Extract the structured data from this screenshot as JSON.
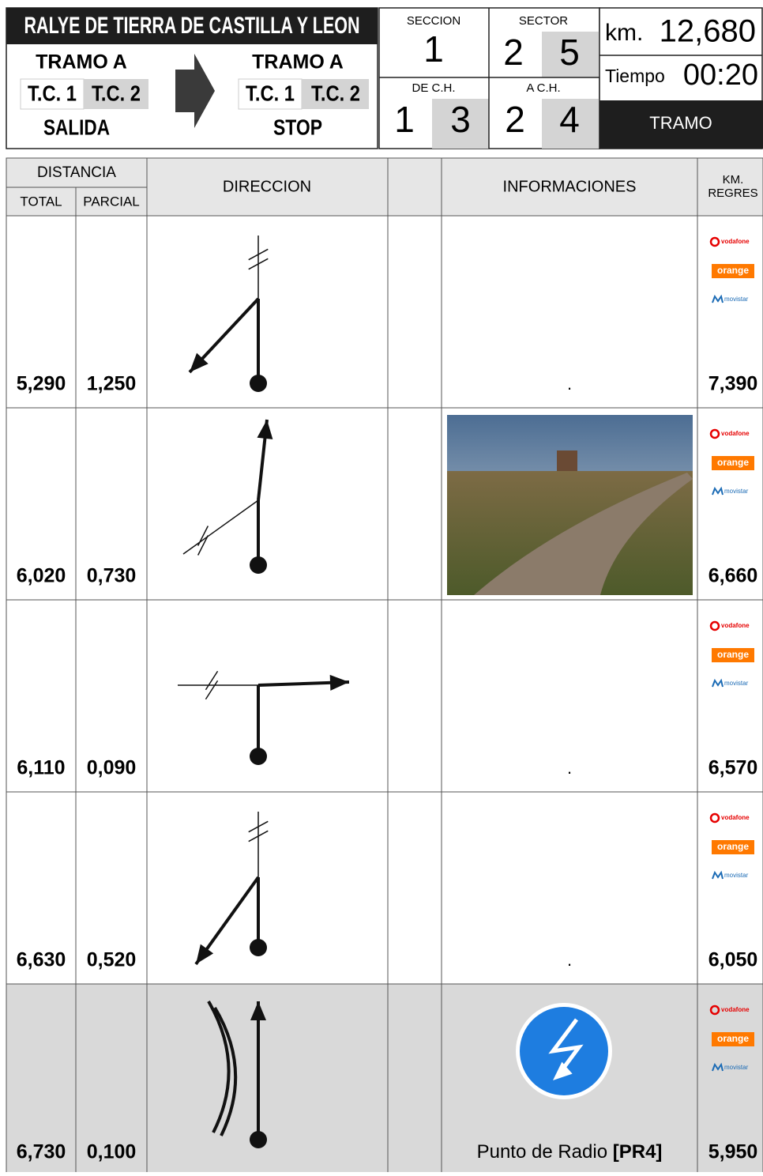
{
  "header": {
    "title": "RALYE DE TIERRA DE CASTILLA Y LEON",
    "from": {
      "tramo": "TRAMO A",
      "tc1": "T.C. 1",
      "tc2": "T.C. 2",
      "label": "SALIDA"
    },
    "to": {
      "tramo": "TRAMO A",
      "tc1": "T.C. 1",
      "tc2": "T.C. 2",
      "label": "STOP"
    },
    "seccion": {
      "label": "SECCION",
      "value": "1"
    },
    "sector": {
      "label": "SECTOR",
      "values": [
        "2",
        "5"
      ]
    },
    "de_ch": {
      "label": "DE C.H.",
      "values": [
        "1",
        "3"
      ]
    },
    "a_ch": {
      "label": "A C.H.",
      "values": [
        "2",
        "4"
      ]
    },
    "km": {
      "label": "km.",
      "value": "12,680"
    },
    "tiempo": {
      "label": "Tiempo",
      "value": "00:20"
    },
    "tramo": "TRAMO"
  },
  "table": {
    "headers": {
      "distancia": "DISTANCIA",
      "total": "TOTAL",
      "parcial": "PARCIAL",
      "direccion": "DIRECCION",
      "informaciones": "INFORMACIONES",
      "km_regres": [
        "KM.",
        "REGRES"
      ]
    },
    "operators": [
      "vodafone",
      "orange",
      "movistar"
    ],
    "rows": [
      {
        "total": "5,290",
        "parcial": "1,250",
        "info": ".",
        "km_regres": "7,390"
      },
      {
        "total": "6,020",
        "parcial": "0,730",
        "km_regres": "6,660"
      },
      {
        "total": "6,110",
        "parcial": "0,090",
        "info": ".",
        "km_regres": "6,570"
      },
      {
        "total": "6,630",
        "parcial": "0,520",
        "info": ".",
        "km_regres": "6,050"
      },
      {
        "total": "6,730",
        "parcial": "0,100",
        "info": "Punto de Radio",
        "info_bold": "[PR4]",
        "km_regres": "5,950"
      }
    ]
  }
}
